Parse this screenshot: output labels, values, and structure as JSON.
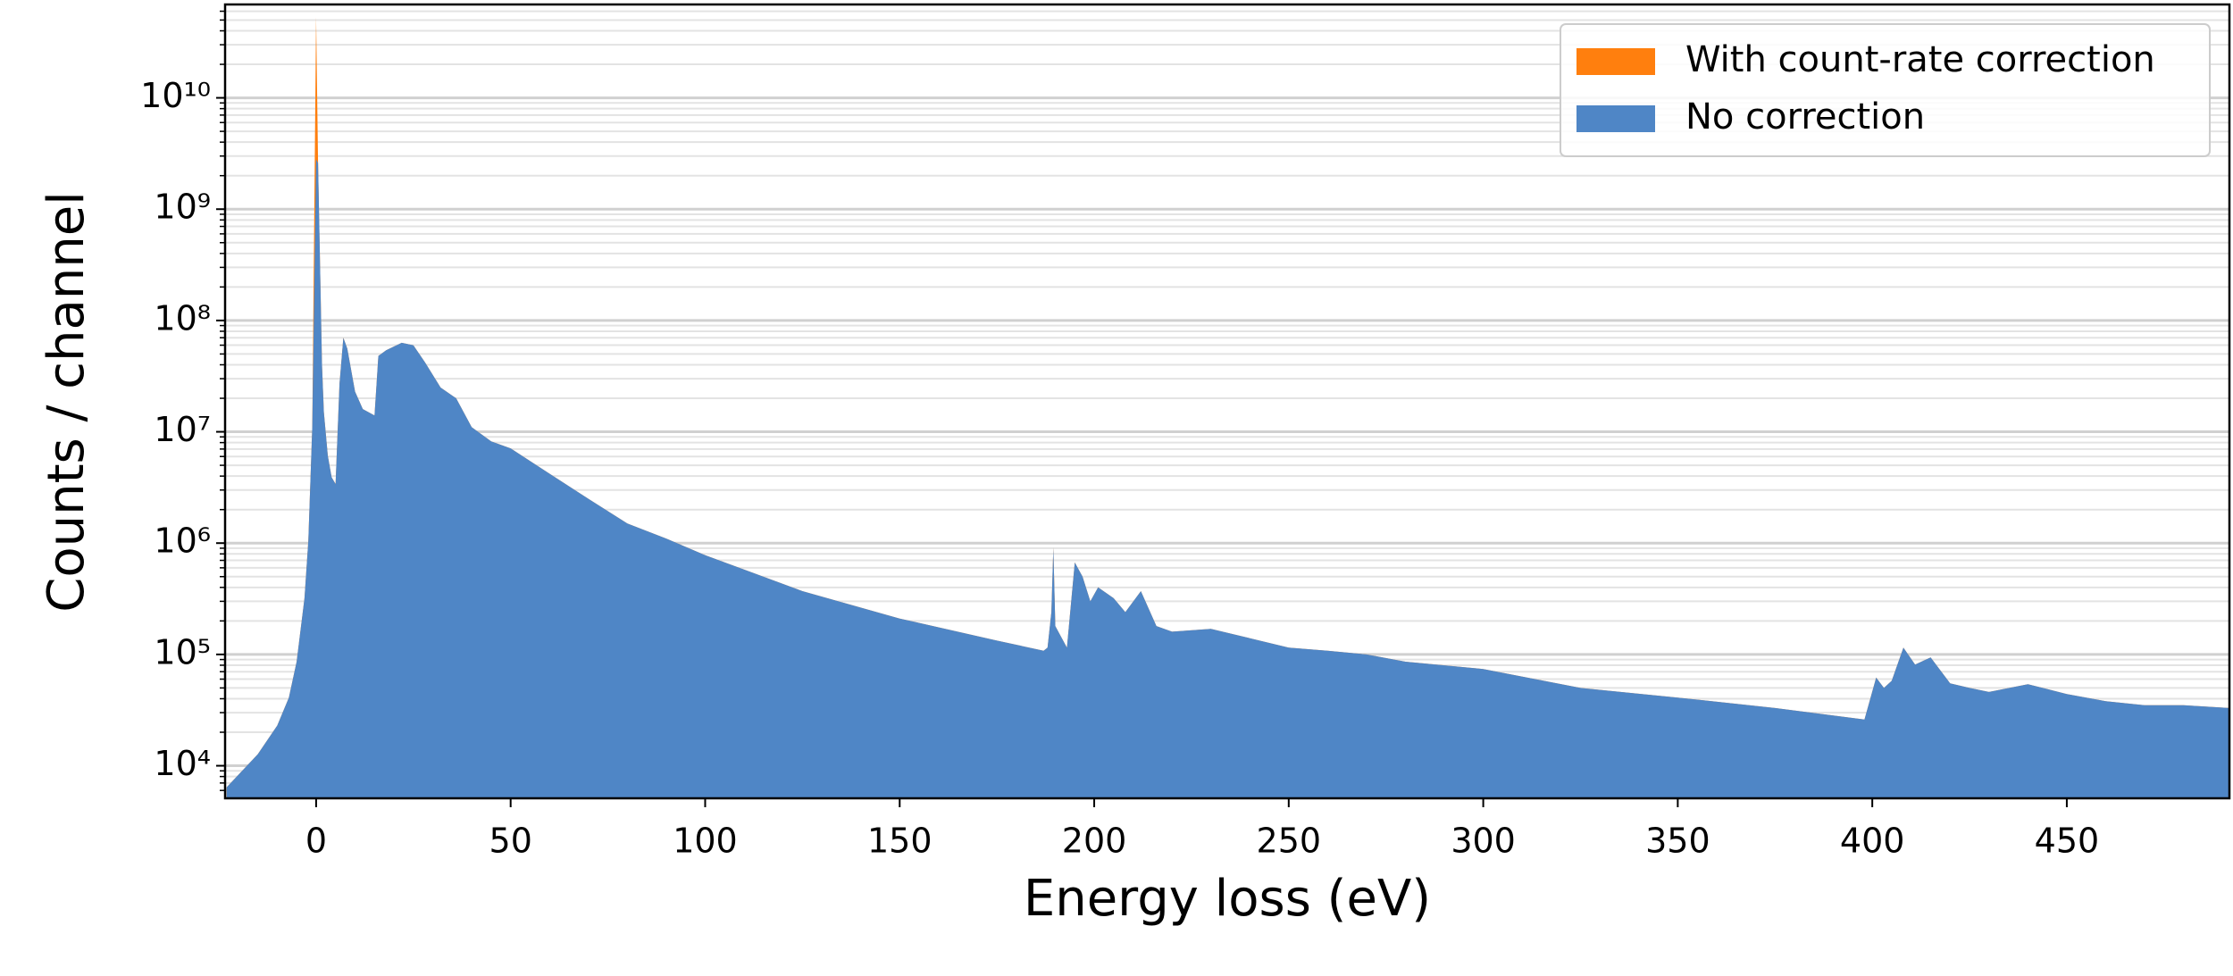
{
  "chart_data": {
    "type": "area",
    "xlabel": "Energy loss (eV)",
    "ylabel": "Counts / channel",
    "yscale": "log",
    "grid": true,
    "legend": "upper right",
    "xlim": [
      -23.4,
      491.8
    ],
    "ylim": [
      5100,
      69000000000
    ],
    "xticks": [
      0,
      50,
      100,
      150,
      200,
      250,
      300,
      350,
      400,
      450
    ],
    "yticks": [
      {
        "value": 10000,
        "label": "10⁴"
      },
      {
        "value": 100000,
        "label": "10⁵"
      },
      {
        "value": 1000000,
        "label": "10⁶"
      },
      {
        "value": 10000000,
        "label": "10⁷"
      },
      {
        "value": 100000000,
        "label": "10⁸"
      },
      {
        "value": 1000000000,
        "label": "10⁹"
      },
      {
        "value": 10000000000,
        "label": "10¹⁰"
      }
    ],
    "yminor": [
      6000,
      7000,
      8000,
      9000,
      20000,
      30000,
      40000,
      50000,
      60000,
      70000,
      80000,
      90000,
      200000,
      300000,
      400000,
      500000,
      600000,
      700000,
      800000,
      900000,
      2000000,
      3000000,
      4000000,
      5000000,
      6000000,
      7000000,
      8000000,
      9000000,
      20000000,
      30000000,
      40000000,
      50000000,
      60000000,
      70000000,
      80000000,
      90000000,
      200000000,
      300000000,
      400000000,
      500000000,
      600000000,
      700000000,
      800000000,
      900000000,
      2000000000,
      3000000000,
      4000000000,
      5000000000,
      6000000000,
      7000000000,
      8000000000,
      9000000000,
      20000000000,
      30000000000,
      40000000000,
      50000000000,
      60000000000
    ],
    "x": [
      -23,
      -15,
      -10,
      -7,
      -5,
      -3,
      -2,
      -1,
      0,
      0.5,
      1.5,
      2,
      3,
      4,
      5,
      6,
      7,
      8,
      10,
      12,
      15,
      16,
      18,
      22,
      25,
      28,
      32,
      36,
      40,
      45,
      50,
      60,
      70,
      80,
      90,
      100,
      125,
      150,
      175,
      187,
      188,
      189,
      189.5,
      190,
      193,
      195,
      197,
      199,
      201,
      205,
      208,
      212,
      216,
      220,
      230,
      240,
      250,
      260,
      270,
      280,
      300,
      325,
      350,
      375,
      398,
      401,
      403,
      405,
      408,
      411,
      415,
      420,
      425,
      430,
      440,
      450,
      460,
      470,
      480,
      491.8
    ],
    "series": [
      {
        "name": "With count-rate correction",
        "color": "#ff7f0e",
        "values": [
          6400,
          12700,
          23000,
          41000,
          86000,
          320000,
          1050000,
          11000000,
          53000000000,
          2600000000,
          40000000,
          15000000,
          6100000,
          3900000,
          3400000,
          27000000,
          70000000,
          56000000,
          23000000,
          16000000,
          14000000,
          48000000,
          54000000,
          63000000,
          60000000,
          42000000,
          25000000,
          20000000,
          11000000,
          8200000,
          7100000,
          4200000,
          2500000,
          1500000,
          1100000,
          780000,
          370000,
          210000,
          133000,
          108000,
          115000,
          240000,
          910000,
          180000,
          115000,
          670000,
          500000,
          300000,
          400000,
          320000,
          240000,
          370000,
          180000,
          160000,
          170000,
          140000,
          115000,
          108000,
          100000,
          86000,
          74000,
          50000,
          41000,
          33000,
          26000,
          62000,
          50000,
          58000,
          115000,
          81000,
          94000,
          55000,
          50000,
          46000,
          54000,
          44000,
          38000,
          35000,
          35000,
          33000
        ]
      },
      {
        "name": "No correction",
        "color": "#4f86c6",
        "values": [
          6400,
          12700,
          23000,
          41000,
          86000,
          320000,
          1050000,
          11000000,
          2800000000,
          2600000000,
          40000000,
          15000000,
          6100000,
          3900000,
          3400000,
          27000000,
          70000000,
          56000000,
          23000000,
          16000000,
          14000000,
          48000000,
          54000000,
          63000000,
          60000000,
          42000000,
          25000000,
          20000000,
          11000000,
          8200000,
          7100000,
          4200000,
          2500000,
          1500000,
          1100000,
          780000,
          370000,
          210000,
          133000,
          108000,
          115000,
          240000,
          910000,
          180000,
          115000,
          670000,
          500000,
          300000,
          400000,
          320000,
          240000,
          370000,
          180000,
          160000,
          170000,
          140000,
          115000,
          108000,
          100000,
          86000,
          74000,
          50000,
          41000,
          33000,
          26000,
          62000,
          50000,
          58000,
          115000,
          81000,
          94000,
          55000,
          50000,
          46000,
          54000,
          44000,
          38000,
          35000,
          35000,
          33000
        ]
      }
    ]
  }
}
